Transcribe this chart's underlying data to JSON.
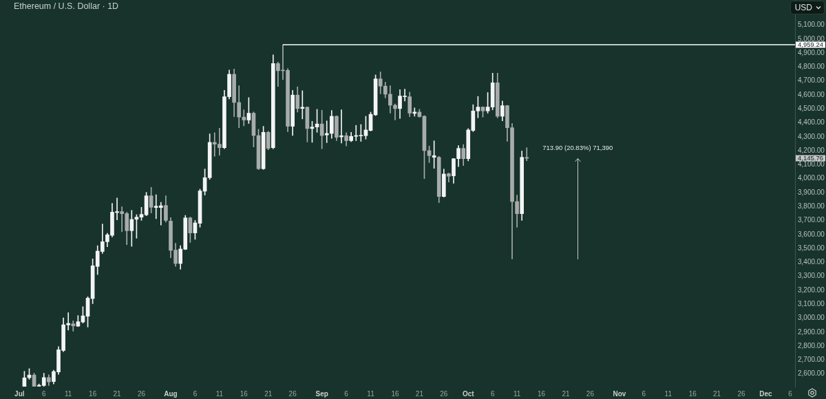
{
  "chart_data": {
    "type": "candlestick",
    "title": "Ethereum / U.S. Dollar · 1D",
    "ylabel": "USD",
    "x": [
      "--07-02",
      "--07-03",
      "--07-04",
      "--07-05",
      "--07-06",
      "--07-07",
      "--07-08",
      "--07-09",
      "--07-10",
      "--07-11",
      "--07-12",
      "--07-13",
      "--07-14",
      "--07-15",
      "--07-16",
      "--07-17",
      "--07-18",
      "--07-19",
      "--07-20",
      "--07-21",
      "--07-22",
      "--07-23",
      "--07-24",
      "--07-25",
      "--07-26",
      "--07-27",
      "--07-28",
      "--07-29",
      "--07-30",
      "--07-31",
      "--08-01",
      "--08-02",
      "--08-03",
      "--08-04",
      "--08-05",
      "--08-06",
      "--08-07",
      "--08-08",
      "--08-09",
      "--08-10",
      "--08-11",
      "--08-12",
      "--08-13",
      "--08-14",
      "--08-15",
      "--08-16",
      "--08-17",
      "--08-18",
      "--08-19",
      "--08-20",
      "--08-21",
      "--08-22",
      "--08-23",
      "--08-24",
      "--08-25",
      "--08-26",
      "--08-27",
      "--08-28",
      "--08-29",
      "--08-30",
      "--08-31",
      "--09-01",
      "--09-02",
      "--09-03",
      "--09-04",
      "--09-05",
      "--09-06",
      "--09-07",
      "--09-08",
      "--09-09",
      "--09-10",
      "--09-11",
      "--09-12",
      "--09-13",
      "--09-14",
      "--09-15",
      "--09-16",
      "--09-17",
      "--09-18",
      "--09-19",
      "--09-20",
      "--09-21",
      "--09-22",
      "--09-23",
      "--09-24",
      "--09-25",
      "--09-26",
      "--09-27",
      "--09-28",
      "--09-29",
      "--09-30",
      "--10-01",
      "--10-02",
      "--10-03",
      "--10-04",
      "--10-05",
      "--10-06",
      "--10-07",
      "--10-08",
      "--10-09",
      "--10-10",
      "--10-11",
      "--10-12",
      "--10-13"
    ],
    "ohlc": [
      [
        2511,
        2620,
        2511,
        2573
      ],
      [
        2574,
        2639,
        2562,
        2593
      ],
      [
        2593,
        2606,
        2511,
        2512
      ],
      [
        2513,
        2529,
        2511,
        2520
      ],
      [
        2518,
        2606,
        2511,
        2575
      ],
      [
        2575,
        2595,
        2518,
        2544
      ],
      [
        2546,
        2628,
        2529,
        2618
      ],
      [
        2615,
        2797,
        2598,
        2774
      ],
      [
        2769,
        3003,
        2761,
        2953
      ],
      [
        2952,
        3040,
        2915,
        2963
      ],
      [
        2960,
        2981,
        2907,
        2945
      ],
      [
        2943,
        3019,
        2940,
        2975
      ],
      [
        2973,
        3083,
        2965,
        3017
      ],
      [
        3014,
        3154,
        2937,
        3144
      ],
      [
        3141,
        3425,
        3104,
        3376
      ],
      [
        3371,
        3520,
        3313,
        3481
      ],
      [
        3478,
        3675,
        3464,
        3548
      ],
      [
        3548,
        3609,
        3512,
        3598
      ],
      [
        3594,
        3823,
        3583,
        3760
      ],
      [
        3757,
        3861,
        3704,
        3764
      ],
      [
        3764,
        3798,
        3619,
        3749
      ],
      [
        3750,
        3760,
        3527,
        3627
      ],
      [
        3627,
        3773,
        3515,
        3708
      ],
      [
        3709,
        3742,
        3573,
        3724
      ],
      [
        3724,
        3795,
        3701,
        3744
      ],
      [
        3741,
        3902,
        3734,
        3877
      ],
      [
        3877,
        3938,
        3754,
        3795
      ],
      [
        3793,
        3885,
        3713,
        3803
      ],
      [
        3793,
        3831,
        3667,
        3806
      ],
      [
        3808,
        3877,
        3688,
        3701
      ],
      [
        3696,
        3721,
        3433,
        3486
      ],
      [
        3488,
        3537,
        3372,
        3392
      ],
      [
        3392,
        3520,
        3351,
        3496
      ],
      [
        3494,
        3737,
        3491,
        3719
      ],
      [
        3719,
        3725,
        3543,
        3611
      ],
      [
        3611,
        3701,
        3565,
        3683
      ],
      [
        3680,
        3925,
        3652,
        3912
      ],
      [
        3910,
        4069,
        3882,
        4007
      ],
      [
        4007,
        4321,
        3995,
        4260
      ],
      [
        4260,
        4329,
        4160,
        4247
      ],
      [
        4247,
        4362,
        4168,
        4222
      ],
      [
        4222,
        4633,
        4215,
        4587
      ],
      [
        4587,
        4778,
        4571,
        4748
      ],
      [
        4748,
        4786,
        4444,
        4546
      ],
      [
        4546,
        4666,
        4365,
        4441
      ],
      [
        4441,
        4493,
        4378,
        4420
      ],
      [
        4420,
        4581,
        4395,
        4469
      ],
      [
        4469,
        4478,
        4227,
        4309
      ],
      [
        4309,
        4354,
        4065,
        4071
      ],
      [
        4071,
        4375,
        4066,
        4332
      ],
      [
        4332,
        4340,
        4206,
        4217
      ],
      [
        4222,
        4887,
        4214,
        4825
      ],
      [
        4825,
        4835,
        4661,
        4773
      ],
      [
        4778,
        4959.24,
        4710,
        4773
      ],
      [
        4776,
        4789,
        4337,
        4375
      ],
      [
        4375,
        4633,
        4309,
        4599
      ],
      [
        4599,
        4658,
        4477,
        4502
      ],
      [
        4503,
        4630,
        4428,
        4512
      ],
      [
        4512,
        4515,
        4263,
        4359
      ],
      [
        4359,
        4411,
        4260,
        4370
      ],
      [
        4370,
        4497,
        4332,
        4392
      ],
      [
        4392,
        4490,
        4214,
        4309
      ],
      [
        4313,
        4414,
        4258,
        4324
      ],
      [
        4324,
        4488,
        4288,
        4447
      ],
      [
        4447,
        4450,
        4272,
        4296
      ],
      [
        4299,
        4493,
        4255,
        4308
      ],
      [
        4308,
        4329,
        4234,
        4272
      ],
      [
        4272,
        4332,
        4265,
        4303
      ],
      [
        4303,
        4382,
        4272,
        4309
      ],
      [
        4306,
        4388,
        4267,
        4311
      ],
      [
        4308,
        4447,
        4283,
        4349
      ],
      [
        4345,
        4477,
        4341,
        4461
      ],
      [
        4457,
        4743,
        4452,
        4715
      ],
      [
        4715,
        4765,
        4608,
        4663
      ],
      [
        4663,
        4691,
        4579,
        4605
      ],
      [
        4605,
        4666,
        4469,
        4526
      ],
      [
        4526,
        4535,
        4420,
        4502
      ],
      [
        4502,
        4638,
        4431,
        4592
      ],
      [
        4587,
        4641,
        4556,
        4592
      ],
      [
        4587,
        4620,
        4444,
        4469
      ],
      [
        4467,
        4507,
        4447,
        4477
      ],
      [
        4477,
        4497,
        4440,
        4444
      ],
      [
        4447,
        4452,
        4000,
        4201
      ],
      [
        4201,
        4234,
        4115,
        4165
      ],
      [
        4153,
        4271,
        4074,
        4165
      ],
      [
        4153,
        4160,
        3828,
        3872
      ],
      [
        3872,
        4069,
        3868,
        4033
      ],
      [
        4036,
        4040,
        3976,
        4017
      ],
      [
        4020,
        4145,
        3967,
        4143
      ],
      [
        4143,
        4237,
        4086,
        4217
      ],
      [
        4217,
        4244,
        4094,
        4143
      ],
      [
        4143,
        4359,
        4127,
        4349
      ],
      [
        4345,
        4530,
        4337,
        4485
      ],
      [
        4485,
        4589,
        4436,
        4513
      ],
      [
        4513,
        4515,
        4441,
        4485
      ],
      [
        4485,
        4617,
        4469,
        4513
      ],
      [
        4513,
        4756,
        4493,
        4687
      ],
      [
        4687,
        4756,
        4436,
        4447
      ],
      [
        4447,
        4556,
        4414,
        4523
      ],
      [
        4523,
        4525,
        4267,
        4365
      ],
      [
        4365,
        4395,
        3425,
        3836
      ],
      [
        3836,
        3882,
        3652,
        3749
      ],
      [
        3749,
        4198,
        3701,
        4153
      ],
      [
        4152,
        4222,
        4128,
        4145.76
      ]
    ],
    "colors": [
      "#f4f4f4",
      "#f4f4f4",
      "#a7acaa",
      "#f4f4f4",
      "#f4f4f4",
      "#a7acaa",
      "#f4f4f4",
      "#f4f4f4",
      "#f4f4f4",
      "#f4f4f4",
      "#a7acaa",
      "#f4f4f4",
      "#f4f4f4",
      "#f4f4f4",
      "#f4f4f4",
      "#f4f4f4",
      "#f4f4f4",
      "#f4f4f4",
      "#f4f4f4",
      "#f4f4f4",
      "#a7acaa",
      "#a7acaa",
      "#f4f4f4",
      "#f4f4f4",
      "#f4f4f4",
      "#f4f4f4",
      "#a7acaa",
      "#f4f4f4",
      "#f4f4f4",
      "#a7acaa",
      "#a7acaa",
      "#a7acaa",
      "#f4f4f4",
      "#f4f4f4",
      "#a7acaa",
      "#f4f4f4",
      "#f4f4f4",
      "#f4f4f4",
      "#f4f4f4",
      "#a7acaa",
      "#a7acaa",
      "#f4f4f4",
      "#f4f4f4",
      "#a7acaa",
      "#a7acaa",
      "#a7acaa",
      "#f4f4f4",
      "#a7acaa",
      "#a7acaa",
      "#f4f4f4",
      "#a7acaa",
      "#f4f4f4",
      "#a7acaa",
      "#a7acaa",
      "#a7acaa",
      "#f4f4f4",
      "#a7acaa",
      "#f4f4f4",
      "#a7acaa",
      "#f4f4f4",
      "#f4f4f4",
      "#a7acaa",
      "#f4f4f4",
      "#f4f4f4",
      "#a7acaa",
      "#f4f4f4",
      "#a7acaa",
      "#f4f4f4",
      "#f4f4f4",
      "#f4f4f4",
      "#f4f4f4",
      "#f4f4f4",
      "#f4f4f4",
      "#a7acaa",
      "#a7acaa",
      "#a7acaa",
      "#a7acaa",
      "#f4f4f4",
      "#f4f4f4",
      "#a7acaa",
      "#f4f4f4",
      "#a7acaa",
      "#a7acaa",
      "#a7acaa",
      "#f4f4f4",
      "#a7acaa",
      "#f4f4f4",
      "#a7acaa",
      "#f4f4f4",
      "#f4f4f4",
      "#a7acaa",
      "#f4f4f4",
      "#f4f4f4",
      "#f4f4f4",
      "#a7acaa",
      "#f4f4f4",
      "#f4f4f4",
      "#a7acaa",
      "#f4f4f4",
      "#a7acaa",
      "#a7acaa",
      "#a7acaa",
      "#f4f4f4",
      "#a7acaa"
    ],
    "xlim": [
      "--06-27",
      "--12-07"
    ],
    "xticks": [
      {
        "value": "--07-01",
        "label": "Jul"
      },
      {
        "value": "--07-06",
        "label": "6"
      },
      {
        "value": "--07-11",
        "label": "11"
      },
      {
        "value": "--07-16",
        "label": "16"
      },
      {
        "value": "--07-21",
        "label": "21"
      },
      {
        "value": "--07-26",
        "label": "26"
      },
      {
        "value": "--08-01",
        "label": "Aug"
      },
      {
        "value": "--08-06",
        "label": "6"
      },
      {
        "value": "--08-11",
        "label": "11"
      },
      {
        "value": "--08-16",
        "label": "16"
      },
      {
        "value": "--08-21",
        "label": "21"
      },
      {
        "value": "--08-26",
        "label": "26"
      },
      {
        "value": "--09-01",
        "label": "Sep"
      },
      {
        "value": "--09-06",
        "label": "6"
      },
      {
        "value": "--09-11",
        "label": "11"
      },
      {
        "value": "--09-16",
        "label": "16"
      },
      {
        "value": "--09-21",
        "label": "21"
      },
      {
        "value": "--09-26",
        "label": "26"
      },
      {
        "value": "--10-01",
        "label": "Oct"
      },
      {
        "value": "--10-06",
        "label": "6"
      },
      {
        "value": "--10-11",
        "label": "11"
      },
      {
        "value": "--10-16",
        "label": "16"
      },
      {
        "value": "--10-21",
        "label": "21"
      },
      {
        "value": "--10-26",
        "label": "26"
      },
      {
        "value": "--11-01",
        "label": "Nov"
      },
      {
        "value": "--11-06",
        "label": "6"
      },
      {
        "value": "--11-11",
        "label": "11"
      },
      {
        "value": "--11-16",
        "label": "16"
      },
      {
        "value": "--11-21",
        "label": "21"
      },
      {
        "value": "--11-26",
        "label": "26"
      },
      {
        "value": "--12-01",
        "label": "Dec"
      },
      {
        "value": "--12-06",
        "label": "6"
      }
    ],
    "ylim": [
      2510,
      5280
    ],
    "yticks": [
      {
        "value": 2600,
        "label": "2,600.00"
      },
      {
        "value": 2700,
        "label": "2,700.00"
      },
      {
        "value": 2800,
        "label": "2,800.00"
      },
      {
        "value": 2900,
        "label": "2,900.00"
      },
      {
        "value": 3000,
        "label": "3,000.00"
      },
      {
        "value": 3100,
        "label": "3,100.00"
      },
      {
        "value": 3200,
        "label": "3,200.00"
      },
      {
        "value": 3300,
        "label": "3,300.00"
      },
      {
        "value": 3400,
        "label": "3,400.00"
      },
      {
        "value": 3500,
        "label": "3,500.00"
      },
      {
        "value": 3600,
        "label": "3,600.00"
      },
      {
        "value": 3700,
        "label": "3,700.00"
      },
      {
        "value": 3800,
        "label": "3,800.00"
      },
      {
        "value": 3900,
        "label": "3,900.00"
      },
      {
        "value": 4000,
        "label": "4,000.00"
      },
      {
        "value": 4100,
        "label": "4,100.00"
      },
      {
        "value": 4200,
        "label": "4,200.00"
      },
      {
        "value": 4300,
        "label": "4,300.00"
      },
      {
        "value": 4400,
        "label": "4,400.00"
      },
      {
        "value": 4500,
        "label": "4,500.00"
      },
      {
        "value": 4600,
        "label": "4,600.00"
      },
      {
        "value": 4700,
        "label": "4,700.00"
      },
      {
        "value": 4800,
        "label": "4,800.00"
      },
      {
        "value": 4900,
        "label": "4,900.00"
      },
      {
        "value": 5000,
        "label": "5,000.00"
      },
      {
        "value": 5100,
        "label": "5,100.00"
      }
    ],
    "ref_lines": [
      {
        "axis": "y",
        "value": 4959.24,
        "label": "4,959.24",
        "color": "#ffffff"
      }
    ],
    "annotations": [
      "4,145.76",
      {
        "text": "713.90 (20.83%) 71,390",
        "x": "--10-13",
        "y": 4145.76
      }
    ]
  }
}
